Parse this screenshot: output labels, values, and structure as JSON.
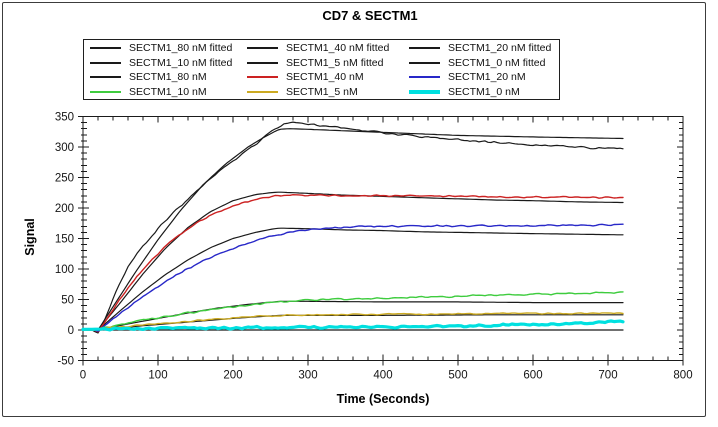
{
  "figure": {
    "border_color": "#3c3c3c",
    "background": "#ffffff"
  },
  "chart_data": {
    "type": "line",
    "title": "CD7 & SECTM1",
    "xlabel": "Time (Seconds)",
    "ylabel": "Signal",
    "xlim": [
      0,
      800
    ],
    "ylim": [
      -50,
      350
    ],
    "x_major_step": 100,
    "x_minor_step": 20,
    "y_major_step": 50,
    "y_minor_step": 10,
    "grid": false,
    "legend_position": "top-inside-box",
    "axis_color": "#1a1a1a",
    "series": [
      {
        "name": "SECTM1_80 nM fitted",
        "color": "#1a1a1a",
        "width": 1.2,
        "noise": 0,
        "points": [
          [
            0,
            0
          ],
          [
            20,
            0
          ],
          [
            40,
            38
          ],
          [
            70,
            95
          ],
          [
            100,
            148
          ],
          [
            130,
            196
          ],
          [
            160,
            238
          ],
          [
            190,
            272
          ],
          [
            220,
            300
          ],
          [
            240,
            315
          ],
          [
            255,
            325
          ],
          [
            262,
            329
          ],
          [
            275,
            330
          ],
          [
            300,
            329
          ],
          [
            340,
            327
          ],
          [
            380,
            325
          ],
          [
            420,
            323
          ],
          [
            460,
            321
          ],
          [
            500,
            319
          ],
          [
            540,
            318
          ],
          [
            580,
            317
          ],
          [
            620,
            316
          ],
          [
            670,
            315
          ],
          [
            720,
            314
          ]
        ]
      },
      {
        "name": "SECTM1_40 nM fitted",
        "color": "#1a1a1a",
        "width": 1.2,
        "noise": 0,
        "points": [
          [
            0,
            0
          ],
          [
            20,
            0
          ],
          [
            50,
            45
          ],
          [
            80,
            92
          ],
          [
            110,
            134
          ],
          [
            140,
            168
          ],
          [
            170,
            194
          ],
          [
            200,
            212
          ],
          [
            230,
            222
          ],
          [
            250,
            225
          ],
          [
            262,
            226
          ],
          [
            300,
            224
          ],
          [
            350,
            221
          ],
          [
            400,
            219
          ],
          [
            450,
            217
          ],
          [
            500,
            215
          ],
          [
            550,
            213
          ],
          [
            600,
            212
          ],
          [
            660,
            210
          ],
          [
            720,
            209
          ]
        ]
      },
      {
        "name": "SECTM1_20 nM fitted",
        "color": "#1a1a1a",
        "width": 1.2,
        "noise": 0,
        "points": [
          [
            0,
            0
          ],
          [
            20,
            0
          ],
          [
            50,
            32
          ],
          [
            80,
            63
          ],
          [
            110,
            91
          ],
          [
            140,
            115
          ],
          [
            170,
            135
          ],
          [
            200,
            150
          ],
          [
            230,
            160
          ],
          [
            250,
            165
          ],
          [
            262,
            167
          ],
          [
            300,
            166
          ],
          [
            350,
            164
          ],
          [
            400,
            163
          ],
          [
            450,
            161
          ],
          [
            500,
            160
          ],
          [
            550,
            159
          ],
          [
            600,
            158
          ],
          [
            660,
            157
          ],
          [
            720,
            156
          ]
        ]
      },
      {
        "name": "SECTM1_10 nM fitted",
        "color": "#1a1a1a",
        "width": 1.2,
        "noise": 0,
        "points": [
          [
            0,
            0
          ],
          [
            20,
            0
          ],
          [
            60,
            10
          ],
          [
            100,
            19
          ],
          [
            140,
            28
          ],
          [
            180,
            36
          ],
          [
            220,
            42
          ],
          [
            262,
            47
          ],
          [
            300,
            47
          ],
          [
            400,
            46
          ],
          [
            500,
            46
          ],
          [
            600,
            45
          ],
          [
            720,
            45
          ]
        ]
      },
      {
        "name": "SECTM1_5 nM fitted",
        "color": "#1a1a1a",
        "width": 1.2,
        "noise": 0,
        "points": [
          [
            0,
            0
          ],
          [
            20,
            0
          ],
          [
            80,
            7
          ],
          [
            140,
            13
          ],
          [
            200,
            19
          ],
          [
            262,
            24
          ],
          [
            400,
            24
          ],
          [
            560,
            25
          ],
          [
            720,
            25
          ]
        ]
      },
      {
        "name": "SECTM1_0 nM fitted",
        "color": "#1a1a1a",
        "width": 1.2,
        "noise": 0,
        "points": [
          [
            0,
            0
          ],
          [
            720,
            0
          ]
        ]
      },
      {
        "name": "SECTM1_80 nM",
        "color": "#1a1a1a",
        "width": 1.2,
        "noise": 2.0,
        "points": [
          [
            0,
            0
          ],
          [
            14,
            0
          ],
          [
            19,
            -7
          ],
          [
            26,
            8
          ],
          [
            40,
            52
          ],
          [
            60,
            104
          ],
          [
            80,
            138
          ],
          [
            100,
            166
          ],
          [
            120,
            192
          ],
          [
            140,
            215
          ],
          [
            160,
            237
          ],
          [
            180,
            258
          ],
          [
            200,
            277
          ],
          [
            220,
            295
          ],
          [
            235,
            309
          ],
          [
            248,
            322
          ],
          [
            258,
            332
          ],
          [
            268,
            338
          ],
          [
            278,
            340
          ],
          [
            290,
            339
          ],
          [
            305,
            337
          ],
          [
            320,
            335
          ],
          [
            340,
            332
          ],
          [
            360,
            329
          ],
          [
            380,
            326
          ],
          [
            400,
            323
          ],
          [
            430,
            320
          ],
          [
            460,
            316
          ],
          [
            490,
            313
          ],
          [
            520,
            310
          ],
          [
            550,
            307
          ],
          [
            580,
            305
          ],
          [
            610,
            303
          ],
          [
            640,
            301
          ],
          [
            670,
            299
          ],
          [
            700,
            298
          ],
          [
            720,
            297
          ]
        ]
      },
      {
        "name": "SECTM1_40 nM",
        "color": "#cc2222",
        "width": 1.4,
        "noise": 1.6,
        "points": [
          [
            0,
            0
          ],
          [
            15,
            0
          ],
          [
            20,
            -3
          ],
          [
            30,
            15
          ],
          [
            50,
            52
          ],
          [
            70,
            85
          ],
          [
            90,
            113
          ],
          [
            110,
            137
          ],
          [
            130,
            157
          ],
          [
            150,
            174
          ],
          [
            170,
            188
          ],
          [
            190,
            199
          ],
          [
            210,
            208
          ],
          [
            230,
            214
          ],
          [
            250,
            219
          ],
          [
            262,
            221
          ],
          [
            280,
            221
          ],
          [
            300,
            221
          ],
          [
            330,
            221
          ],
          [
            360,
            220
          ],
          [
            400,
            220
          ],
          [
            440,
            220
          ],
          [
            480,
            219
          ],
          [
            520,
            219
          ],
          [
            560,
            218
          ],
          [
            600,
            218
          ],
          [
            650,
            218
          ],
          [
            690,
            217
          ],
          [
            720,
            217
          ]
        ]
      },
      {
        "name": "SECTM1_20 nM",
        "color": "#2828c8",
        "width": 1.4,
        "noise": 1.6,
        "points": [
          [
            0,
            0
          ],
          [
            15,
            0
          ],
          [
            20,
            -2
          ],
          [
            40,
            18
          ],
          [
            60,
            37
          ],
          [
            80,
            55
          ],
          [
            100,
            71
          ],
          [
            120,
            87
          ],
          [
            140,
            101
          ],
          [
            160,
            113
          ],
          [
            180,
            124
          ],
          [
            200,
            134
          ],
          [
            220,
            142
          ],
          [
            240,
            150
          ],
          [
            260,
            156
          ],
          [
            280,
            161
          ],
          [
            300,
            164
          ],
          [
            330,
            167
          ],
          [
            360,
            169
          ],
          [
            400,
            170
          ],
          [
            450,
            170
          ],
          [
            500,
            171
          ],
          [
            550,
            171
          ],
          [
            600,
            171
          ],
          [
            650,
            172
          ],
          [
            690,
            172
          ],
          [
            720,
            173
          ]
        ]
      },
      {
        "name": "SECTM1_10 nM",
        "color": "#3ecc3e",
        "width": 1.4,
        "noise": 1.8,
        "points": [
          [
            0,
            0
          ],
          [
            15,
            0
          ],
          [
            25,
            3
          ],
          [
            60,
            11
          ],
          [
            100,
            20
          ],
          [
            140,
            28
          ],
          [
            180,
            35
          ],
          [
            220,
            41
          ],
          [
            260,
            46
          ],
          [
            300,
            49
          ],
          [
            340,
            51
          ],
          [
            380,
            52
          ],
          [
            420,
            53
          ],
          [
            460,
            54
          ],
          [
            500,
            55
          ],
          [
            540,
            57
          ],
          [
            580,
            58
          ],
          [
            620,
            59
          ],
          [
            660,
            60
          ],
          [
            700,
            61
          ],
          [
            720,
            61
          ]
        ]
      },
      {
        "name": "SECTM1_5 nM",
        "color": "#ccaa22",
        "width": 1.4,
        "noise": 1.2,
        "points": [
          [
            0,
            0
          ],
          [
            15,
            0
          ],
          [
            30,
            3
          ],
          [
            80,
            8
          ],
          [
            130,
            13
          ],
          [
            180,
            18
          ],
          [
            230,
            22
          ],
          [
            262,
            24
          ],
          [
            320,
            25
          ],
          [
            400,
            26
          ],
          [
            480,
            26
          ],
          [
            560,
            27
          ],
          [
            640,
            27
          ],
          [
            720,
            28
          ]
        ]
      },
      {
        "name": "SECTM1_0 nM",
        "color": "#00e0e0",
        "width": 3.2,
        "noise": 2.0,
        "points": [
          [
            0,
            1
          ],
          [
            60,
            2
          ],
          [
            120,
            3
          ],
          [
            180,
            3
          ],
          [
            240,
            4
          ],
          [
            300,
            4
          ],
          [
            360,
            5
          ],
          [
            420,
            5
          ],
          [
            480,
            6
          ],
          [
            520,
            7
          ],
          [
            560,
            8
          ],
          [
            600,
            9
          ],
          [
            640,
            10
          ],
          [
            680,
            12
          ],
          [
            700,
            14
          ],
          [
            720,
            14
          ]
        ]
      }
    ]
  },
  "layout_values": {
    "x_tick_labels": [
      "0",
      "100",
      "200",
      "300",
      "400",
      "500",
      "600",
      "700",
      "800"
    ],
    "y_tick_labels": [
      "-50",
      "0",
      "50",
      "100",
      "150",
      "200",
      "250",
      "300",
      "350"
    ]
  }
}
